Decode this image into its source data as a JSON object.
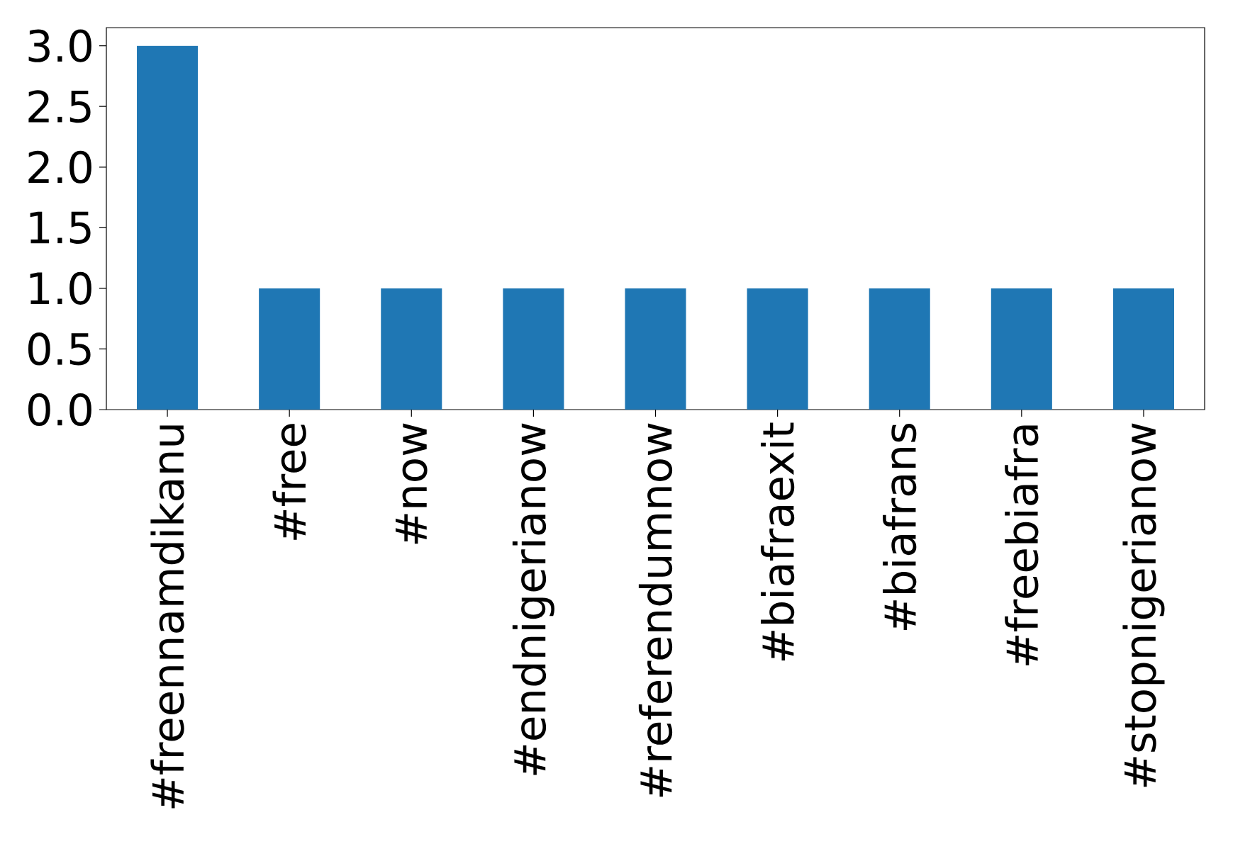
{
  "chart_data": {
    "type": "bar",
    "categories": [
      "#freennamdikanu",
      "#free",
      "#now",
      "#endnigerianow",
      "#referendumnow",
      "#biafraexit",
      "#biafrans",
      "#freebiafra",
      "#stopnigerianow"
    ],
    "values": [
      3,
      1,
      1,
      1,
      1,
      1,
      1,
      1,
      1
    ],
    "color": "#1f77b4",
    "ylim": [
      0,
      3.15
    ],
    "yticks": [
      {
        "value": 0,
        "label": "0.0"
      },
      {
        "value": 0.5,
        "label": "0.5"
      },
      {
        "value": 1,
        "label": "1.0"
      },
      {
        "value": 1.5,
        "label": "1.5"
      },
      {
        "value": 2,
        "label": "2.0"
      },
      {
        "value": 2.5,
        "label": "2.5"
      },
      {
        "value": 3,
        "label": "3.0"
      }
    ],
    "grid": false
  }
}
